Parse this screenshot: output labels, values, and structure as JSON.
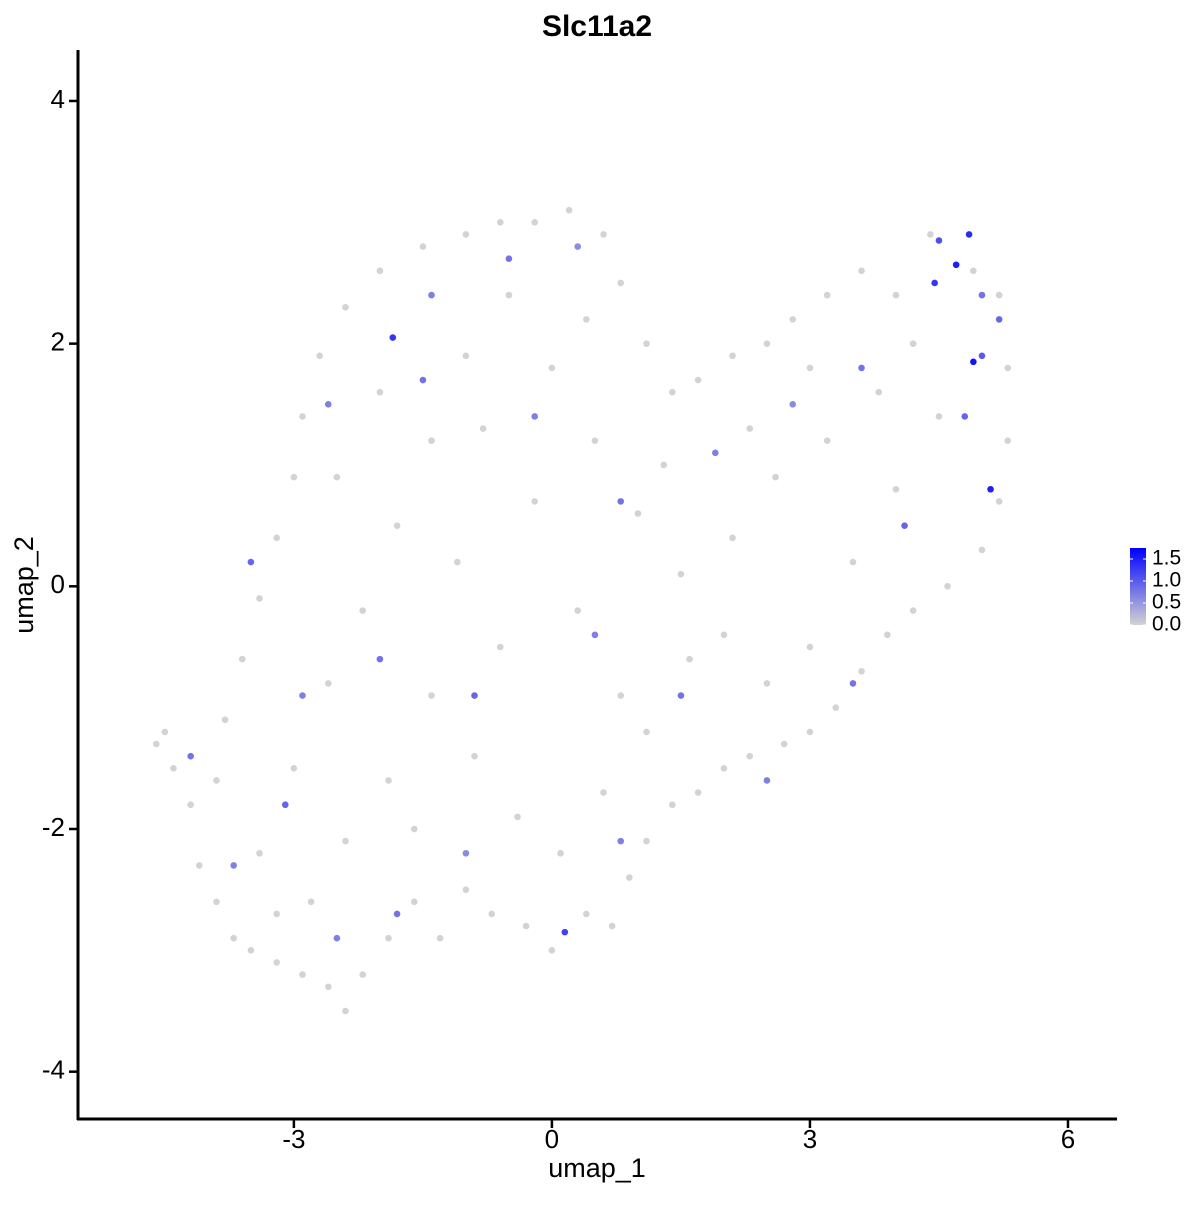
{
  "chart_data": {
    "type": "scatter",
    "title": "Slc11a2",
    "x_label": "umap_1",
    "y_label": "umap_2",
    "xlim": [
      -5.51,
      6.57
    ],
    "ylim": [
      -4.39,
      4.42
    ],
    "xticks": [
      -3,
      0,
      3,
      6
    ],
    "yticks": [
      -4,
      -2,
      0,
      2,
      4
    ],
    "color_low": "#d3d3d3",
    "color_high": "#0000ff",
    "colorlim": [
      0,
      1.75
    ],
    "colorticks": [
      {
        "value": 0,
        "label": "0.0"
      },
      0.5,
      {
        "value": 1,
        "label": "1.0"
      },
      1.5
    ],
    "x": [
      -4.6,
      -4.5,
      -4.4,
      -4.2,
      -4.1,
      -3.9,
      -3.7,
      -3.5,
      -3.2,
      -2.9,
      -2.6,
      -2.4,
      -2.2,
      -1.9,
      -1.6,
      -1.3,
      -1.0,
      -0.7,
      -0.3,
      0.0,
      0.4,
      0.7,
      0.9,
      1.1,
      1.4,
      1.7,
      2.0,
      2.3,
      2.7,
      3.0,
      3.3,
      3.6,
      3.9,
      4.2,
      4.6,
      5.0,
      5.2,
      5.3,
      5.3,
      5.2,
      4.9,
      4.4,
      4.0,
      3.6,
      3.2,
      2.8,
      2.5,
      2.1,
      1.7,
      1.4,
      1.1,
      0.8,
      0.6,
      0.2,
      -0.2,
      -0.6,
      -1.0,
      -1.5,
      -2.0,
      -2.4,
      -2.7,
      -2.9,
      -3.0,
      -3.2,
      -3.4,
      -3.6,
      -3.8,
      -3.9,
      -3.4,
      -3.0,
      -2.6,
      -2.2,
      -1.8,
      -1.4,
      -1.0,
      -0.5,
      0.0,
      0.5,
      1.0,
      1.5,
      2.0,
      2.5,
      3.0,
      3.5,
      4.0,
      4.5,
      3.8,
      3.2,
      2.6,
      2.1,
      1.6,
      1.1,
      0.6,
      0.1,
      -0.4,
      -0.9,
      -1.4,
      -1.9,
      -2.4,
      -2.8,
      -1.6,
      -0.6,
      0.3,
      -0.2,
      -1.1,
      -2.5,
      -2.0,
      -0.8,
      0.4,
      1.3,
      2.3,
      3.0,
      4.2,
      0.8,
      -3.2,
      -4.2,
      -3.7,
      -3.1,
      -2.5,
      -1.8,
      -1.0,
      0.15,
      0.8,
      -2.9,
      -2.0,
      -0.9,
      0.5,
      1.5,
      2.5,
      3.5,
      -3.5,
      -2.6,
      -1.85,
      -1.5,
      -1.4,
      -0.5,
      0.3,
      -0.2,
      0.8,
      1.9,
      2.8,
      3.6,
      4.1,
      4.45,
      4.5,
      4.7,
      4.85,
      5.0,
      4.9,
      5.2,
      5.1,
      4.8,
      5.0
    ],
    "y": [
      -1.3,
      -1.2,
      -1.5,
      -1.8,
      -2.3,
      -2.6,
      -2.9,
      -3.0,
      -3.1,
      -3.2,
      -3.3,
      -3.5,
      -3.2,
      -2.9,
      -2.6,
      -2.9,
      -2.5,
      -2.7,
      -2.8,
      -3.0,
      -2.7,
      -2.8,
      -2.4,
      -2.1,
      -1.8,
      -1.7,
      -1.5,
      -1.4,
      -1.3,
      -1.2,
      -1.0,
      -0.7,
      -0.4,
      -0.2,
      0.0,
      0.3,
      0.7,
      1.2,
      1.8,
      2.4,
      2.6,
      2.9,
      2.4,
      2.6,
      2.4,
      2.2,
      2.0,
      1.9,
      1.7,
      1.6,
      2.0,
      2.5,
      2.9,
      3.1,
      3.0,
      3.0,
      2.9,
      2.8,
      2.6,
      2.3,
      1.9,
      1.4,
      0.9,
      0.4,
      -0.1,
      -0.6,
      -1.1,
      -1.6,
      -2.2,
      -1.5,
      -0.8,
      -0.2,
      0.5,
      1.2,
      1.9,
      2.4,
      1.8,
      1.2,
      0.6,
      0.1,
      -0.4,
      -0.8,
      -0.5,
      0.2,
      0.8,
      1.4,
      1.6,
      1.2,
      0.9,
      0.4,
      -0.6,
      -1.2,
      -1.7,
      -2.2,
      -1.9,
      -1.4,
      -0.9,
      -1.6,
      -2.1,
      -2.6,
      -2.0,
      -0.5,
      -0.2,
      0.7,
      0.2,
      0.9,
      1.6,
      1.3,
      2.2,
      1.0,
      1.3,
      1.8,
      2.0,
      -0.9,
      -2.7,
      -1.4,
      -2.3,
      -1.8,
      -2.9,
      -2.7,
      -2.2,
      -2.85,
      -2.1,
      -0.9,
      -0.6,
      -0.9,
      -0.4,
      -0.9,
      -1.6,
      -0.8,
      0.2,
      1.5,
      2.05,
      1.7,
      2.4,
      2.7,
      2.8,
      1.4,
      0.7,
      1.1,
      1.5,
      1.8,
      0.5,
      2.5,
      2.85,
      2.65,
      2.9,
      1.9,
      1.85,
      2.2,
      0.8,
      1.4,
      2.4
    ],
    "values": [
      0,
      0,
      0,
      0,
      0,
      0,
      0,
      0,
      0,
      0,
      0,
      0,
      0,
      0,
      0,
      0,
      0,
      0,
      0,
      0,
      0,
      0,
      0,
      0,
      0,
      0,
      0,
      0,
      0,
      0,
      0,
      0,
      0,
      0,
      0,
      0,
      0,
      0,
      0,
      0,
      0,
      0,
      0,
      0,
      0,
      0,
      0,
      0,
      0,
      0,
      0,
      0,
      0,
      0,
      0,
      0,
      0,
      0,
      0,
      0,
      0,
      0,
      0,
      0,
      0,
      0,
      0,
      0,
      0,
      0,
      0,
      0,
      0,
      0,
      0,
      0,
      0,
      0,
      0,
      0,
      0,
      0,
      0,
      0,
      0,
      0,
      0,
      0,
      0,
      0,
      0,
      0,
      0,
      0,
      0,
      0,
      0,
      0,
      0,
      0,
      0,
      0,
      0,
      0,
      0,
      0,
      0,
      0,
      0,
      0,
      0,
      0,
      0,
      0,
      0,
      0.8,
      0.7,
      0.9,
      0.7,
      0.8,
      0.6,
      1.2,
      0.7,
      0.7,
      0.8,
      0.9,
      0.7,
      0.8,
      0.7,
      0.8,
      0.9,
      0.7,
      1.3,
      0.8,
      0.7,
      0.8,
      0.6,
      0.7,
      0.8,
      0.7,
      0.6,
      0.8,
      0.9,
      1.3,
      1.1,
      1.5,
      1.4,
      1.0,
      1.6,
      0.9,
      1.5,
      0.9,
      0.8
    ]
  }
}
